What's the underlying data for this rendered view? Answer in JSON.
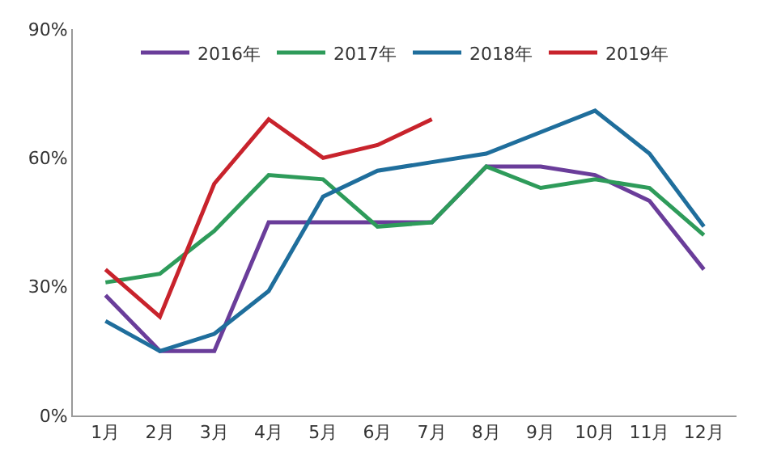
{
  "chart_data": {
    "type": "line",
    "categories": [
      "1月",
      "2月",
      "3月",
      "4月",
      "5月",
      "6月",
      "7月",
      "8月",
      "9月",
      "10月",
      "11月",
      "12月"
    ],
    "series": [
      {
        "name": "2016年",
        "color": "#6a3d9a",
        "values": [
          28,
          15,
          15,
          45,
          45,
          45,
          45,
          58,
          58,
          56,
          50,
          34
        ]
      },
      {
        "name": "2017年",
        "color": "#2e9b5a",
        "values": [
          31,
          33,
          43,
          56,
          55,
          44,
          45,
          58,
          53,
          55,
          53,
          42
        ]
      },
      {
        "name": "2018年",
        "color": "#1f6e9c",
        "values": [
          22,
          15,
          19,
          29,
          51,
          57,
          59,
          61,
          66,
          71,
          61,
          44
        ]
      },
      {
        "name": "2019年",
        "color": "#c8232c",
        "values": [
          34,
          23,
          54,
          69,
          60,
          63,
          69,
          null,
          null,
          null,
          null,
          null
        ]
      }
    ],
    "ylim": [
      0,
      90
    ],
    "yticks": [
      {
        "value": 0,
        "label": "0%"
      },
      {
        "value": 30,
        "label": "30%"
      },
      {
        "value": 60,
        "label": "60%"
      },
      {
        "value": 90,
        "label": "90%"
      }
    ],
    "legend": "top",
    "marker": "none",
    "line_style": "solid"
  }
}
